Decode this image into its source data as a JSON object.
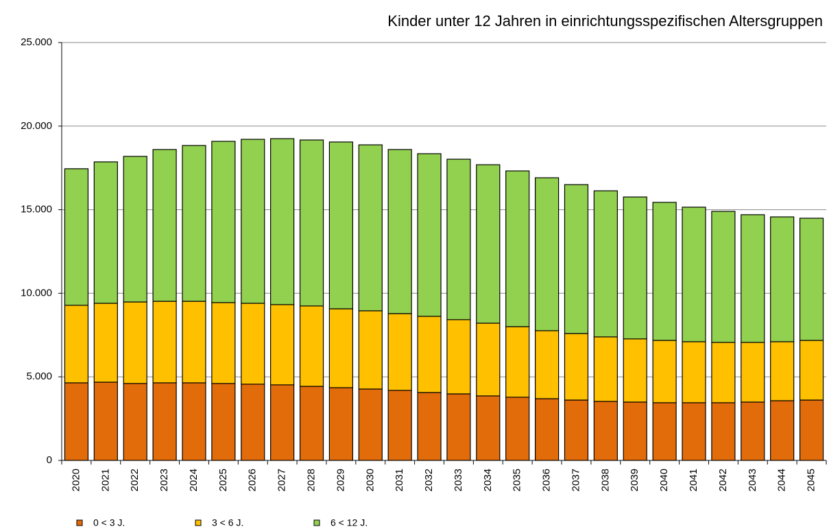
{
  "chart_data": {
    "type": "stacked_bar",
    "title": "Kinder unter 12 Jahren in einrichtungsspezifischen Altersgruppen",
    "categories": [
      "2020",
      "2021",
      "2022",
      "2023",
      "2024",
      "2025",
      "2026",
      "2027",
      "2028",
      "2029",
      "2030",
      "2031",
      "2032",
      "2033",
      "2034",
      "2035",
      "2036",
      "2037",
      "2038",
      "2039",
      "2040",
      "2041",
      "2042",
      "2043",
      "2044",
      "2045"
    ],
    "series": [
      {
        "name": "0 < 3 J.",
        "color": "#e36c0a",
        "values": [
          4640,
          4680,
          4600,
          4640,
          4640,
          4600,
          4560,
          4520,
          4430,
          4350,
          4270,
          4190,
          4060,
          3980,
          3860,
          3780,
          3690,
          3610,
          3530,
          3490,
          3450,
          3450,
          3450,
          3490,
          3570,
          3610
        ]
      },
      {
        "name": "3 < 6 J.",
        "color": "#ffc000",
        "values": [
          4640,
          4720,
          4880,
          4880,
          4880,
          4840,
          4840,
          4800,
          4810,
          4720,
          4680,
          4590,
          4560,
          4440,
          4350,
          4220,
          4070,
          3980,
          3860,
          3780,
          3730,
          3650,
          3610,
          3570,
          3530,
          3570
        ]
      },
      {
        "name": "6 < 12 J.",
        "color": "#92d050",
        "values": [
          8170,
          8460,
          8710,
          9080,
          9320,
          9650,
          9810,
          9930,
          9930,
          9980,
          9930,
          9820,
          9730,
          9600,
          9480,
          9320,
          9150,
          8910,
          8740,
          8490,
          8260,
          8050,
          7840,
          7640,
          7470,
          7310
        ]
      }
    ],
    "ylim": [
      0,
      25000
    ],
    "yticks": [
      0,
      {
        "value": 5000,
        "label": "5.000"
      },
      {
        "value": 10000,
        "label": "10.000"
      },
      {
        "value": 15000,
        "label": "15.000"
      },
      {
        "value": 20000,
        "label": "20.000"
      },
      {
        "value": 25000,
        "label": "25.000"
      }
    ],
    "grid": true,
    "legend": "bottom-left"
  }
}
